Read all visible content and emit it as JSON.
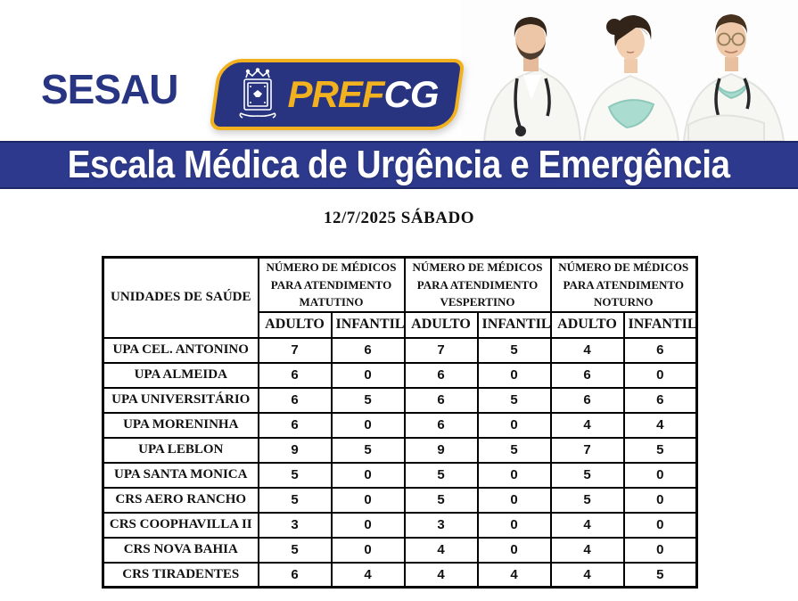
{
  "header": {
    "sesau": "SESAU",
    "prefcg": {
      "pref": "PREF",
      "cg": "CG"
    }
  },
  "banner": {
    "title": "Escala Médica de Urgência e Emergência"
  },
  "date_line": "12/7/2025 SÁBADO",
  "table": {
    "unit_header": "UNIDADES DE SAÚDE",
    "group_headers": [
      "NÚMERO DE MÉDICOS PARA ATENDIMENTO MATUTINO",
      "NÚMERO DE MÉDICOS PARA ATENDIMENTO VESPERTINO",
      "NÚMERO DE MÉDICOS PARA ATENDIMENTO NOTURNO"
    ],
    "sub_headers": [
      "ADULTO",
      "INFANTIL",
      "ADULTO",
      "INFANTIL",
      "ADULTO",
      "INFANTIL"
    ],
    "rows": [
      {
        "unit": "UPA CEL. ANTONINO",
        "values": [
          "7",
          "6",
          "7",
          "5",
          "4",
          "6"
        ]
      },
      {
        "unit": "UPA ALMEIDA",
        "values": [
          "6",
          "0",
          "6",
          "0",
          "6",
          "0"
        ]
      },
      {
        "unit": "UPA UNIVERSITÁRIO",
        "values": [
          "6",
          "5",
          "6",
          "5",
          "6",
          "6"
        ]
      },
      {
        "unit": "UPA MORENINHA",
        "values": [
          "6",
          "0",
          "6",
          "0",
          "4",
          "4"
        ]
      },
      {
        "unit": "UPA LEBLON",
        "values": [
          "9",
          "5",
          "9",
          "5",
          "7",
          "5"
        ]
      },
      {
        "unit": "UPA SANTA MONICA",
        "values": [
          "5",
          "0",
          "5",
          "0",
          "5",
          "0"
        ]
      },
      {
        "unit": "CRS AERO RANCHO",
        "values": [
          "5",
          "0",
          "5",
          "0",
          "5",
          "0"
        ]
      },
      {
        "unit": "CRS COOPHAVILLA II",
        "values": [
          "3",
          "0",
          "3",
          "0",
          "4",
          "0"
        ]
      },
      {
        "unit": "CRS NOVA BAHIA",
        "values": [
          "5",
          "0",
          "4",
          "0",
          "4",
          "0"
        ]
      },
      {
        "unit": "CRS TIRADENTES",
        "values": [
          "6",
          "4",
          "4",
          "4",
          "4",
          "5"
        ]
      }
    ]
  },
  "colors": {
    "navy": "#283583",
    "banner_blue": "#2d398c",
    "accent_yellow": "#f2b21f",
    "mask_teal": "#aadcd0",
    "border_black": "#000000"
  }
}
